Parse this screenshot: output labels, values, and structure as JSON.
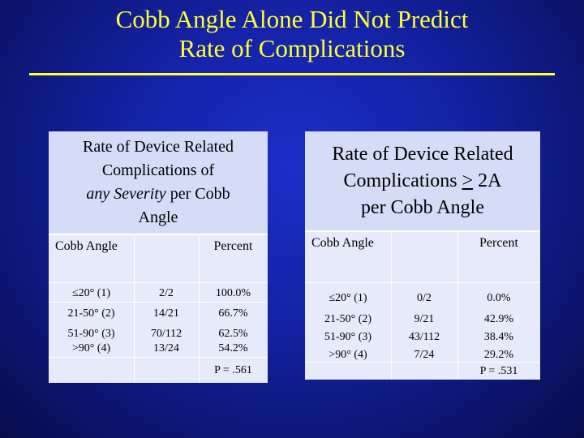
{
  "slide": {
    "title_line1": "Cobb Angle Alone Did Not Predict",
    "title_line2": "Rate of Complications",
    "colors": {
      "title": "#ffff33",
      "background": "#1422a6",
      "header_fill": "#d4dcf8",
      "table_fill": "#e6eafb"
    }
  },
  "left_table": {
    "header_line1": "Rate of Device Related",
    "header_line2": "Complications of",
    "header_line3_italic": "any Severity",
    "header_line3_rest": " per Cobb",
    "header_line4": "Angle",
    "col_label": "Cobb Angle",
    "col_value": "Percent",
    "rows": [
      {
        "angle": "≤20° (1)",
        "ratio": "2/2",
        "percent": "100.0%"
      },
      {
        "angle": "21-50° (2)",
        "ratio": "14/21",
        "percent": "66.7%"
      },
      {
        "angle": "51-90° (3)",
        "ratio": "70/112",
        "percent": "62.5%"
      },
      {
        "angle": ">90° (4)",
        "ratio": "13/24",
        "percent": "54.2%"
      }
    ],
    "p_value": "P = .561"
  },
  "right_table": {
    "header_line1": "Rate of Device Related",
    "header_line2_pre": "Complications ",
    "header_line2_sym": ">",
    "header_line2_post": " 2A",
    "header_line3": "per Cobb Angle",
    "col_label": "Cobb Angle",
    "col_value": "Percent",
    "rows": [
      {
        "angle": "≤20° (1)",
        "ratio": "0/2",
        "percent": "0.0%"
      },
      {
        "angle": "21-50° (2)",
        "ratio": "9/21",
        "percent": "42.9%"
      },
      {
        "angle": "51-90° (3)",
        "ratio": "43/112",
        "percent": "38.4%"
      },
      {
        "angle": ">90° (4)",
        "ratio": "7/24",
        "percent": "29.2%"
      }
    ],
    "p_value": "P = .531"
  }
}
